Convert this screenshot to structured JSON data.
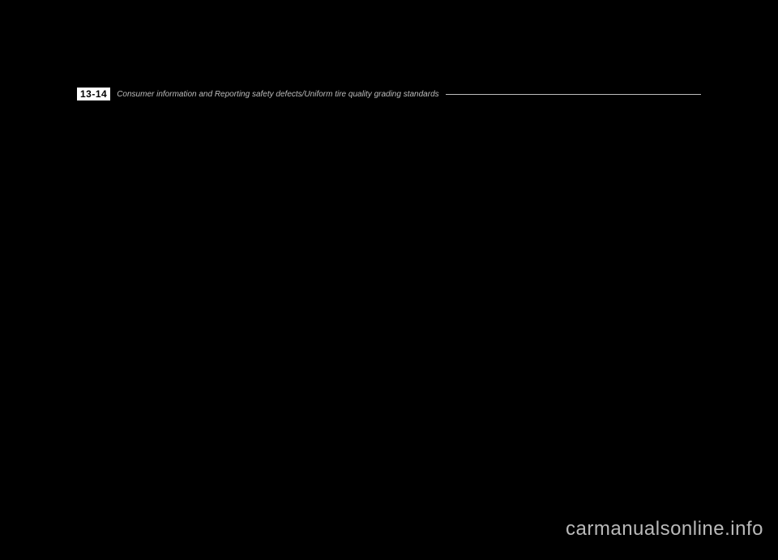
{
  "header": {
    "page_number": "13-14",
    "title": "Consumer information and Reporting safety defects/Uniform tire quality grading standards"
  },
  "watermark": {
    "text": "carmanualsonline.info"
  },
  "colors": {
    "background": "#000000",
    "page_number_bg": "#ffffff",
    "page_number_fg": "#000000",
    "header_text": "#bdbdbd",
    "header_line": "#bdbdbd",
    "watermark": "#b9b9b9"
  }
}
